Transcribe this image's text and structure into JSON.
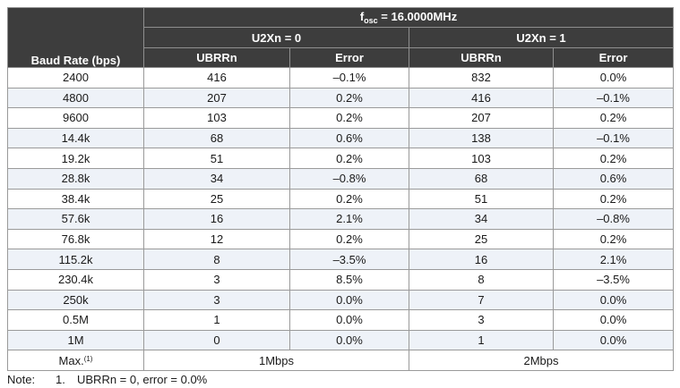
{
  "header": {
    "fosc_prefix": "f",
    "fosc_sub": "osc",
    "fosc_value": " = 16.0000MHz",
    "baud_col": "Baud Rate (bps)",
    "group_u2x0": "U2Xn = 0",
    "group_u2x1": "U2Xn = 1",
    "ubrr_label": "UBRRn",
    "error_label": "Error"
  },
  "rows": [
    {
      "baud": "2400",
      "ubrr0": "416",
      "err0": "–0.1%",
      "ubrr1": "832",
      "err1": "0.0%"
    },
    {
      "baud": "4800",
      "ubrr0": "207",
      "err0": "0.2%",
      "ubrr1": "416",
      "err1": "–0.1%"
    },
    {
      "baud": "9600",
      "ubrr0": "103",
      "err0": "0.2%",
      "ubrr1": "207",
      "err1": "0.2%"
    },
    {
      "baud": "14.4k",
      "ubrr0": "68",
      "err0": "0.6%",
      "ubrr1": "138",
      "err1": "–0.1%"
    },
    {
      "baud": "19.2k",
      "ubrr0": "51",
      "err0": "0.2%",
      "ubrr1": "103",
      "err1": "0.2%"
    },
    {
      "baud": "28.8k",
      "ubrr0": "34",
      "err0": "–0.8%",
      "ubrr1": "68",
      "err1": "0.6%"
    },
    {
      "baud": "38.4k",
      "ubrr0": "25",
      "err0": "0.2%",
      "ubrr1": "51",
      "err1": "0.2%"
    },
    {
      "baud": "57.6k",
      "ubrr0": "16",
      "err0": "2.1%",
      "ubrr1": "34",
      "err1": "–0.8%"
    },
    {
      "baud": "76.8k",
      "ubrr0": "12",
      "err0": "0.2%",
      "ubrr1": "25",
      "err1": "0.2%"
    },
    {
      "baud": "115.2k",
      "ubrr0": "8",
      "err0": "–3.5%",
      "ubrr1": "16",
      "err1": "2.1%"
    },
    {
      "baud": "230.4k",
      "ubrr0": "3",
      "err0": "8.5%",
      "ubrr1": "8",
      "err1": "–3.5%"
    },
    {
      "baud": "250k",
      "ubrr0": "3",
      "err0": "0.0%",
      "ubrr1": "7",
      "err1": "0.0%"
    },
    {
      "baud": "0.5M",
      "ubrr0": "1",
      "err0": "0.0%",
      "ubrr1": "3",
      "err1": "0.0%"
    },
    {
      "baud": "1M",
      "ubrr0": "0",
      "err0": "0.0%",
      "ubrr1": "1",
      "err1": "0.0%"
    }
  ],
  "max_row": {
    "label": "Max.",
    "ref": "(1)",
    "u2x0": "1Mbps",
    "u2x1": "2Mbps"
  },
  "note": {
    "label": "Note:",
    "number": "1.",
    "text": "UBRRn = 0, error = 0.0%"
  },
  "colors": {
    "header_bg": "#3d3d3d",
    "alt_row_bg": "#eef2f8",
    "border": "#9a9a9a"
  }
}
